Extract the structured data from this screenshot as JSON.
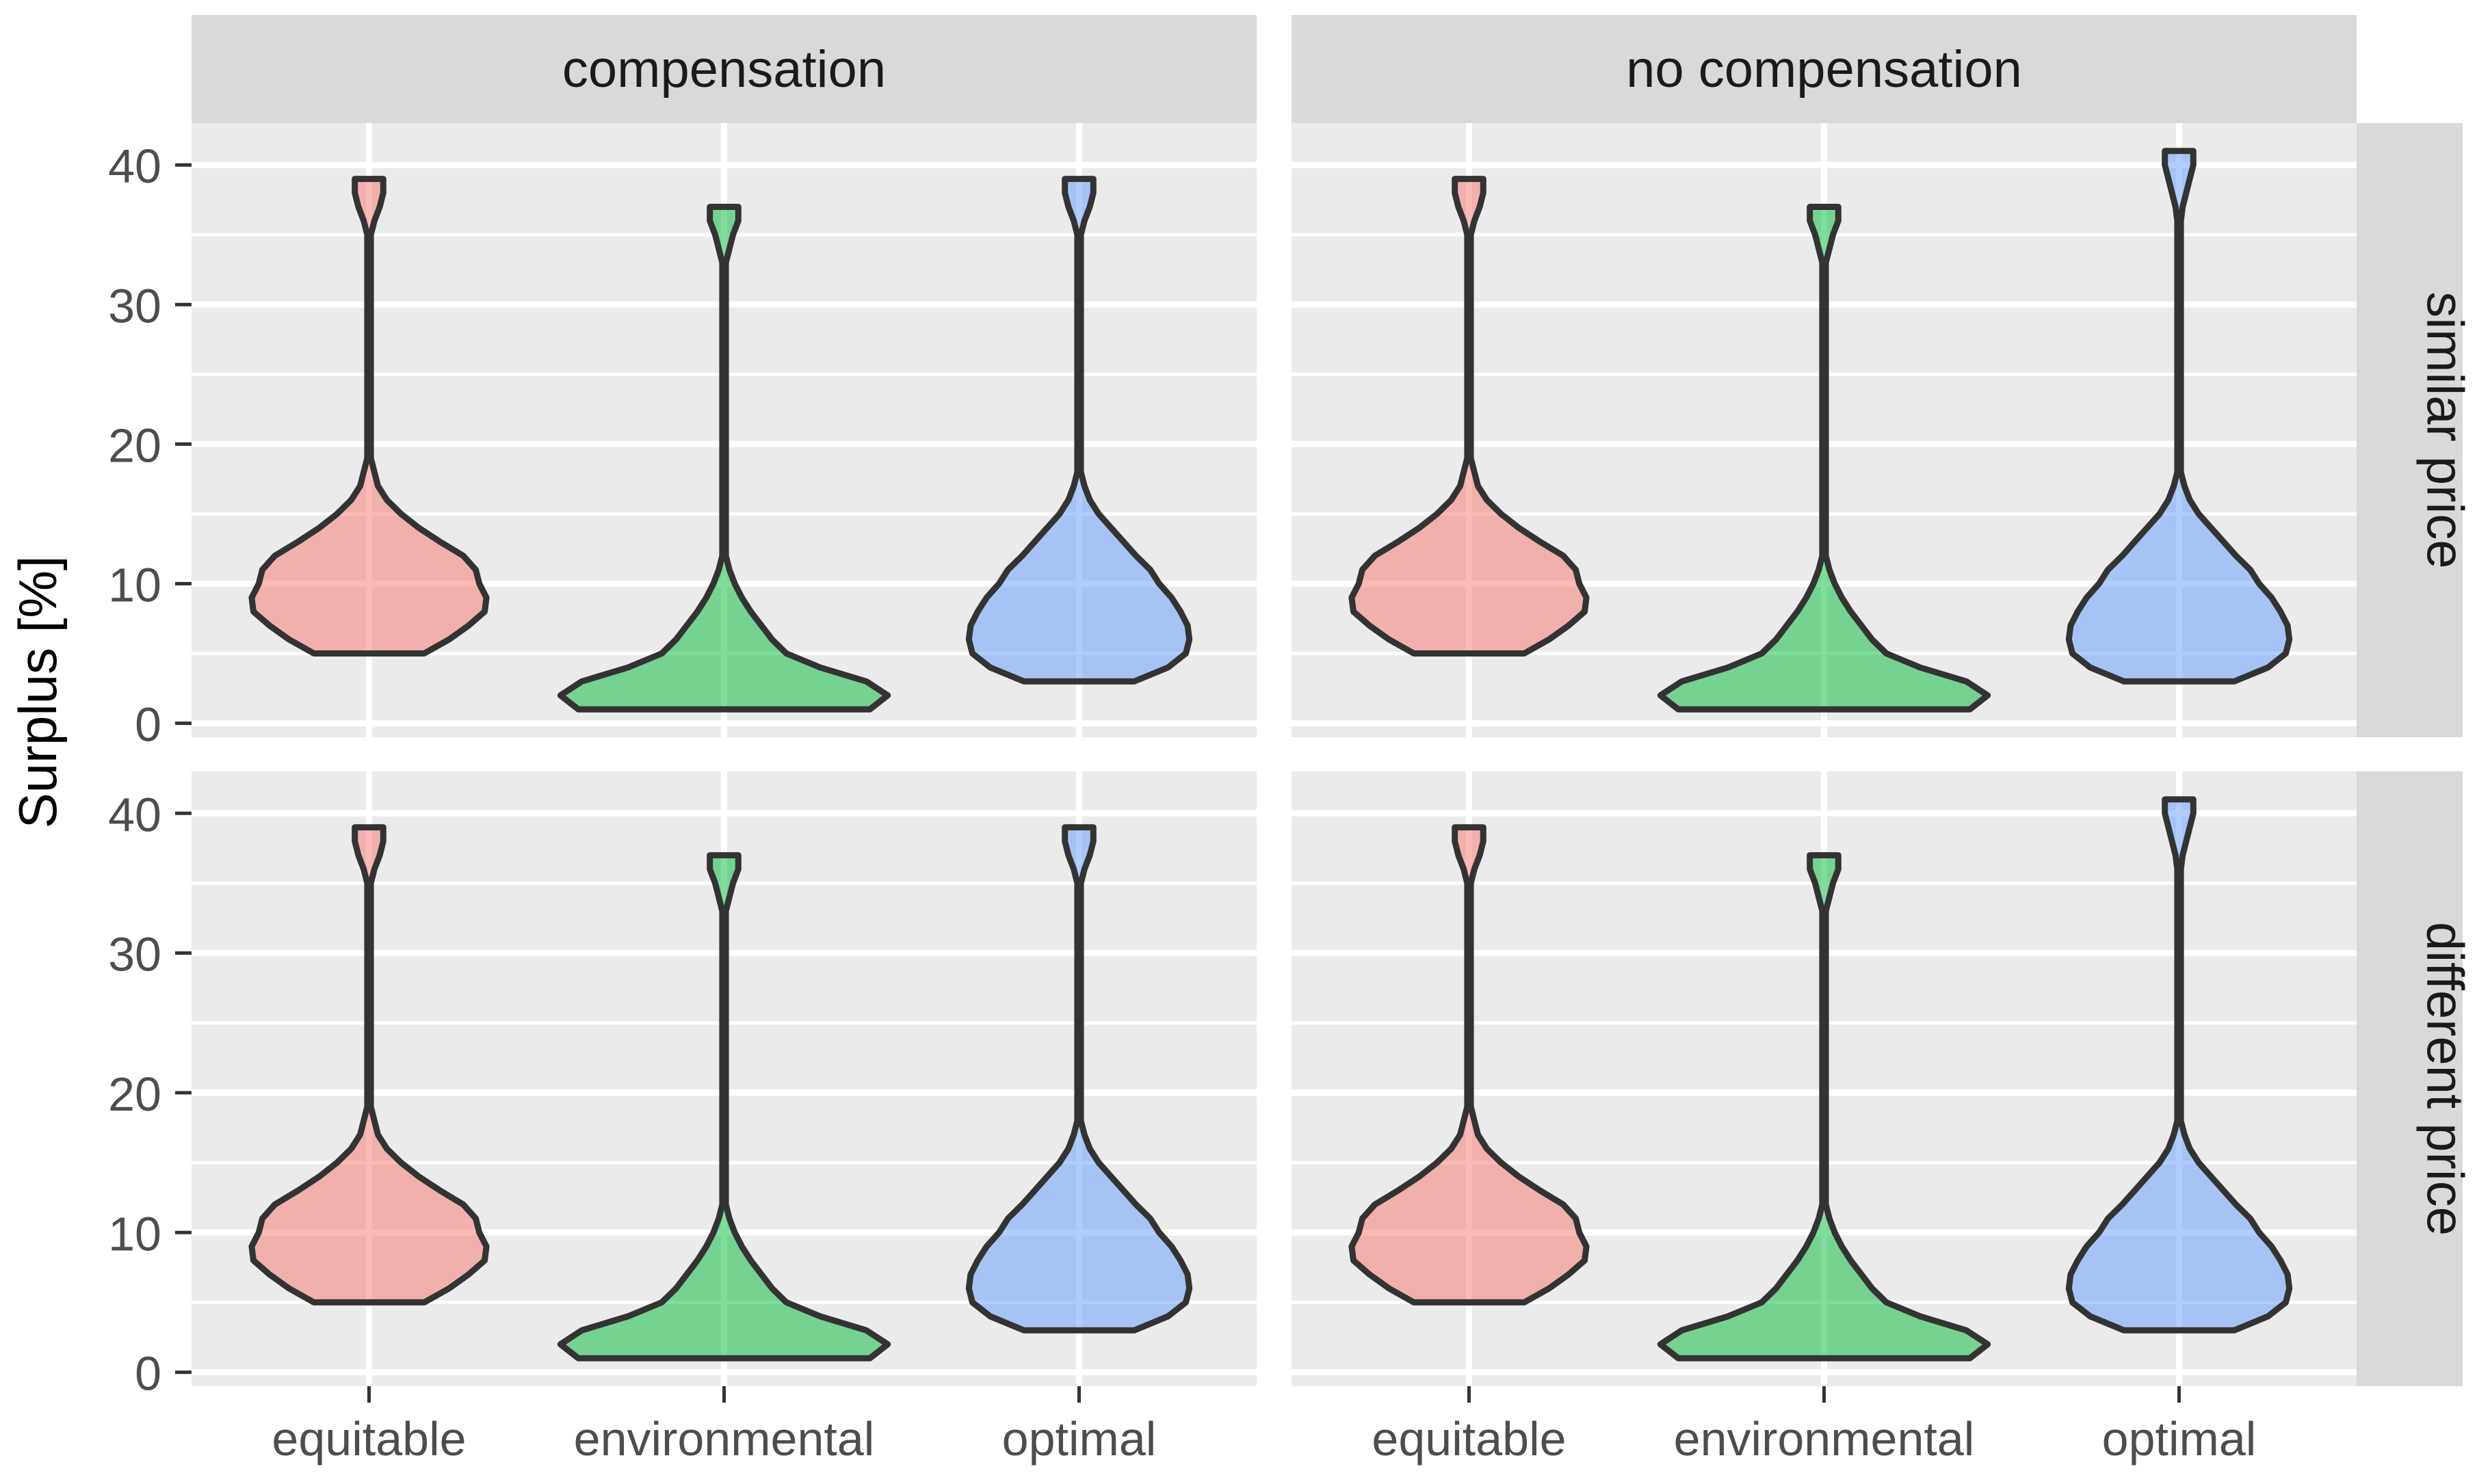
{
  "chart_data": {
    "type": "violin",
    "title": "",
    "xlabel": "",
    "ylabel": "Surplus [%]",
    "ylim": [
      -1,
      43
    ],
    "yticks": [
      0,
      10,
      20,
      30,
      40
    ],
    "categories": [
      "equitable",
      "environmental",
      "optimal"
    ],
    "facet_cols": [
      "compensation",
      "no compensation"
    ],
    "facet_rows": [
      "similar price",
      "different price"
    ],
    "grid": true,
    "legend": "none",
    "colors": {
      "equitable": "#f8766d",
      "environmental": "#00ba38",
      "optimal": "#619cff"
    },
    "violins": {
      "compensation": {
        "similar price": {
          "equitable": {
            "min": 5,
            "max": 39,
            "profile": [
              [
                5,
                0.31
              ],
              [
                6,
                0.45
              ],
              [
                7,
                0.56
              ],
              [
                8,
                0.65
              ],
              [
                9,
                0.66
              ],
              [
                10,
                0.62
              ],
              [
                11,
                0.6
              ],
              [
                12,
                0.53
              ],
              [
                13,
                0.4
              ],
              [
                14,
                0.28
              ],
              [
                15,
                0.18
              ],
              [
                16,
                0.1
              ],
              [
                17,
                0.05
              ],
              [
                18,
                0.03
              ],
              [
                19,
                0.01
              ],
              [
                35,
                0.01
              ],
              [
                36,
                0.03
              ],
              [
                37,
                0.06
              ],
              [
                38,
                0.08
              ],
              [
                39,
                0.08
              ]
            ]
          },
          "environmental": {
            "min": 1,
            "max": 37,
            "profile": [
              [
                1,
                0.82
              ],
              [
                2,
                0.92
              ],
              [
                3,
                0.8
              ],
              [
                4,
                0.54
              ],
              [
                5,
                0.35
              ],
              [
                6,
                0.27
              ],
              [
                7,
                0.21
              ],
              [
                8,
                0.15
              ],
              [
                9,
                0.1
              ],
              [
                10,
                0.06
              ],
              [
                11,
                0.03
              ],
              [
                12,
                0.01
              ],
              [
                33,
                0.01
              ],
              [
                34,
                0.03
              ],
              [
                35,
                0.05
              ],
              [
                36,
                0.08
              ],
              [
                37,
                0.08
              ]
            ]
          },
          "optimal": {
            "min": 3,
            "max": 39,
            "profile": [
              [
                3,
                0.31
              ],
              [
                4,
                0.5
              ],
              [
                5,
                0.6
              ],
              [
                6,
                0.62
              ],
              [
                7,
                0.61
              ],
              [
                8,
                0.57
              ],
              [
                9,
                0.52
              ],
              [
                10,
                0.45
              ],
              [
                11,
                0.4
              ],
              [
                12,
                0.32
              ],
              [
                13,
                0.25
              ],
              [
                14,
                0.18
              ],
              [
                15,
                0.11
              ],
              [
                16,
                0.06
              ],
              [
                17,
                0.03
              ],
              [
                18,
                0.01
              ],
              [
                35,
                0.01
              ],
              [
                36,
                0.03
              ],
              [
                37,
                0.06
              ],
              [
                38,
                0.08
              ],
              [
                39,
                0.08
              ]
            ]
          }
        },
        "different price": {
          "equitable": {
            "min": 5,
            "max": 39,
            "profile": [
              [
                5,
                0.31
              ],
              [
                6,
                0.45
              ],
              [
                7,
                0.56
              ],
              [
                8,
                0.65
              ],
              [
                9,
                0.66
              ],
              [
                10,
                0.62
              ],
              [
                11,
                0.6
              ],
              [
                12,
                0.53
              ],
              [
                13,
                0.4
              ],
              [
                14,
                0.28
              ],
              [
                15,
                0.18
              ],
              [
                16,
                0.1
              ],
              [
                17,
                0.05
              ],
              [
                18,
                0.03
              ],
              [
                19,
                0.01
              ],
              [
                35,
                0.01
              ],
              [
                36,
                0.03
              ],
              [
                37,
                0.06
              ],
              [
                38,
                0.08
              ],
              [
                39,
                0.08
              ]
            ]
          },
          "environmental": {
            "min": 1,
            "max": 37,
            "profile": [
              [
                1,
                0.82
              ],
              [
                2,
                0.92
              ],
              [
                3,
                0.8
              ],
              [
                4,
                0.54
              ],
              [
                5,
                0.35
              ],
              [
                6,
                0.27
              ],
              [
                7,
                0.21
              ],
              [
                8,
                0.15
              ],
              [
                9,
                0.1
              ],
              [
                10,
                0.06
              ],
              [
                11,
                0.03
              ],
              [
                12,
                0.01
              ],
              [
                33,
                0.01
              ],
              [
                34,
                0.03
              ],
              [
                35,
                0.05
              ],
              [
                36,
                0.08
              ],
              [
                37,
                0.08
              ]
            ]
          },
          "optimal": {
            "min": 3,
            "max": 39,
            "profile": [
              [
                3,
                0.31
              ],
              [
                4,
                0.5
              ],
              [
                5,
                0.6
              ],
              [
                6,
                0.62
              ],
              [
                7,
                0.61
              ],
              [
                8,
                0.57
              ],
              [
                9,
                0.52
              ],
              [
                10,
                0.45
              ],
              [
                11,
                0.4
              ],
              [
                12,
                0.32
              ],
              [
                13,
                0.25
              ],
              [
                14,
                0.18
              ],
              [
                15,
                0.11
              ],
              [
                16,
                0.06
              ],
              [
                17,
                0.03
              ],
              [
                18,
                0.01
              ],
              [
                35,
                0.01
              ],
              [
                36,
                0.03
              ],
              [
                37,
                0.06
              ],
              [
                38,
                0.08
              ],
              [
                39,
                0.08
              ]
            ]
          }
        }
      },
      "no compensation": {
        "similar price": {
          "equitable": {
            "min": 5,
            "max": 39,
            "profile": [
              [
                5,
                0.31
              ],
              [
                6,
                0.45
              ],
              [
                7,
                0.56
              ],
              [
                8,
                0.65
              ],
              [
                9,
                0.66
              ],
              [
                10,
                0.62
              ],
              [
                11,
                0.6
              ],
              [
                12,
                0.53
              ],
              [
                13,
                0.4
              ],
              [
                14,
                0.28
              ],
              [
                15,
                0.18
              ],
              [
                16,
                0.1
              ],
              [
                17,
                0.05
              ],
              [
                18,
                0.03
              ],
              [
                19,
                0.01
              ],
              [
                35,
                0.01
              ],
              [
                36,
                0.03
              ],
              [
                37,
                0.06
              ],
              [
                38,
                0.08
              ],
              [
                39,
                0.08
              ]
            ]
          },
          "environmental": {
            "min": 1,
            "max": 37,
            "profile": [
              [
                1,
                0.82
              ],
              [
                2,
                0.92
              ],
              [
                3,
                0.8
              ],
              [
                4,
                0.54
              ],
              [
                5,
                0.35
              ],
              [
                6,
                0.27
              ],
              [
                7,
                0.21
              ],
              [
                8,
                0.15
              ],
              [
                9,
                0.1
              ],
              [
                10,
                0.06
              ],
              [
                11,
                0.03
              ],
              [
                12,
                0.01
              ],
              [
                33,
                0.01
              ],
              [
                34,
                0.03
              ],
              [
                35,
                0.05
              ],
              [
                36,
                0.08
              ],
              [
                37,
                0.08
              ]
            ]
          },
          "optimal": {
            "min": 3,
            "max": 41,
            "profile": [
              [
                3,
                0.31
              ],
              [
                4,
                0.5
              ],
              [
                5,
                0.6
              ],
              [
                6,
                0.62
              ],
              [
                7,
                0.61
              ],
              [
                8,
                0.57
              ],
              [
                9,
                0.52
              ],
              [
                10,
                0.45
              ],
              [
                11,
                0.4
              ],
              [
                12,
                0.32
              ],
              [
                13,
                0.25
              ],
              [
                14,
                0.18
              ],
              [
                15,
                0.11
              ],
              [
                16,
                0.06
              ],
              [
                17,
                0.03
              ],
              [
                18,
                0.01
              ],
              [
                36,
                0.01
              ],
              [
                37,
                0.02
              ],
              [
                38,
                0.04
              ],
              [
                39,
                0.06
              ],
              [
                40,
                0.08
              ],
              [
                41,
                0.08
              ]
            ]
          }
        },
        "different price": {
          "equitable": {
            "min": 5,
            "max": 39,
            "profile": [
              [
                5,
                0.31
              ],
              [
                6,
                0.45
              ],
              [
                7,
                0.56
              ],
              [
                8,
                0.65
              ],
              [
                9,
                0.66
              ],
              [
                10,
                0.62
              ],
              [
                11,
                0.6
              ],
              [
                12,
                0.53
              ],
              [
                13,
                0.4
              ],
              [
                14,
                0.28
              ],
              [
                15,
                0.18
              ],
              [
                16,
                0.1
              ],
              [
                17,
                0.05
              ],
              [
                18,
                0.03
              ],
              [
                19,
                0.01
              ],
              [
                35,
                0.01
              ],
              [
                36,
                0.03
              ],
              [
                37,
                0.06
              ],
              [
                38,
                0.08
              ],
              [
                39,
                0.08
              ]
            ]
          },
          "environmental": {
            "min": 1,
            "max": 37,
            "profile": [
              [
                1,
                0.82
              ],
              [
                2,
                0.92
              ],
              [
                3,
                0.8
              ],
              [
                4,
                0.54
              ],
              [
                5,
                0.35
              ],
              [
                6,
                0.27
              ],
              [
                7,
                0.21
              ],
              [
                8,
                0.15
              ],
              [
                9,
                0.1
              ],
              [
                10,
                0.06
              ],
              [
                11,
                0.03
              ],
              [
                12,
                0.01
              ],
              [
                33,
                0.01
              ],
              [
                34,
                0.03
              ],
              [
                35,
                0.05
              ],
              [
                36,
                0.08
              ],
              [
                37,
                0.08
              ]
            ]
          },
          "optimal": {
            "min": 3,
            "max": 41,
            "profile": [
              [
                3,
                0.31
              ],
              [
                4,
                0.5
              ],
              [
                5,
                0.6
              ],
              [
                6,
                0.62
              ],
              [
                7,
                0.61
              ],
              [
                8,
                0.57
              ],
              [
                9,
                0.52
              ],
              [
                10,
                0.45
              ],
              [
                11,
                0.4
              ],
              [
                12,
                0.32
              ],
              [
                13,
                0.25
              ],
              [
                14,
                0.18
              ],
              [
                15,
                0.11
              ],
              [
                16,
                0.06
              ],
              [
                17,
                0.03
              ],
              [
                18,
                0.01
              ],
              [
                36,
                0.01
              ],
              [
                37,
                0.02
              ],
              [
                38,
                0.04
              ],
              [
                39,
                0.06
              ],
              [
                40,
                0.08
              ],
              [
                41,
                0.08
              ]
            ]
          }
        }
      }
    }
  }
}
